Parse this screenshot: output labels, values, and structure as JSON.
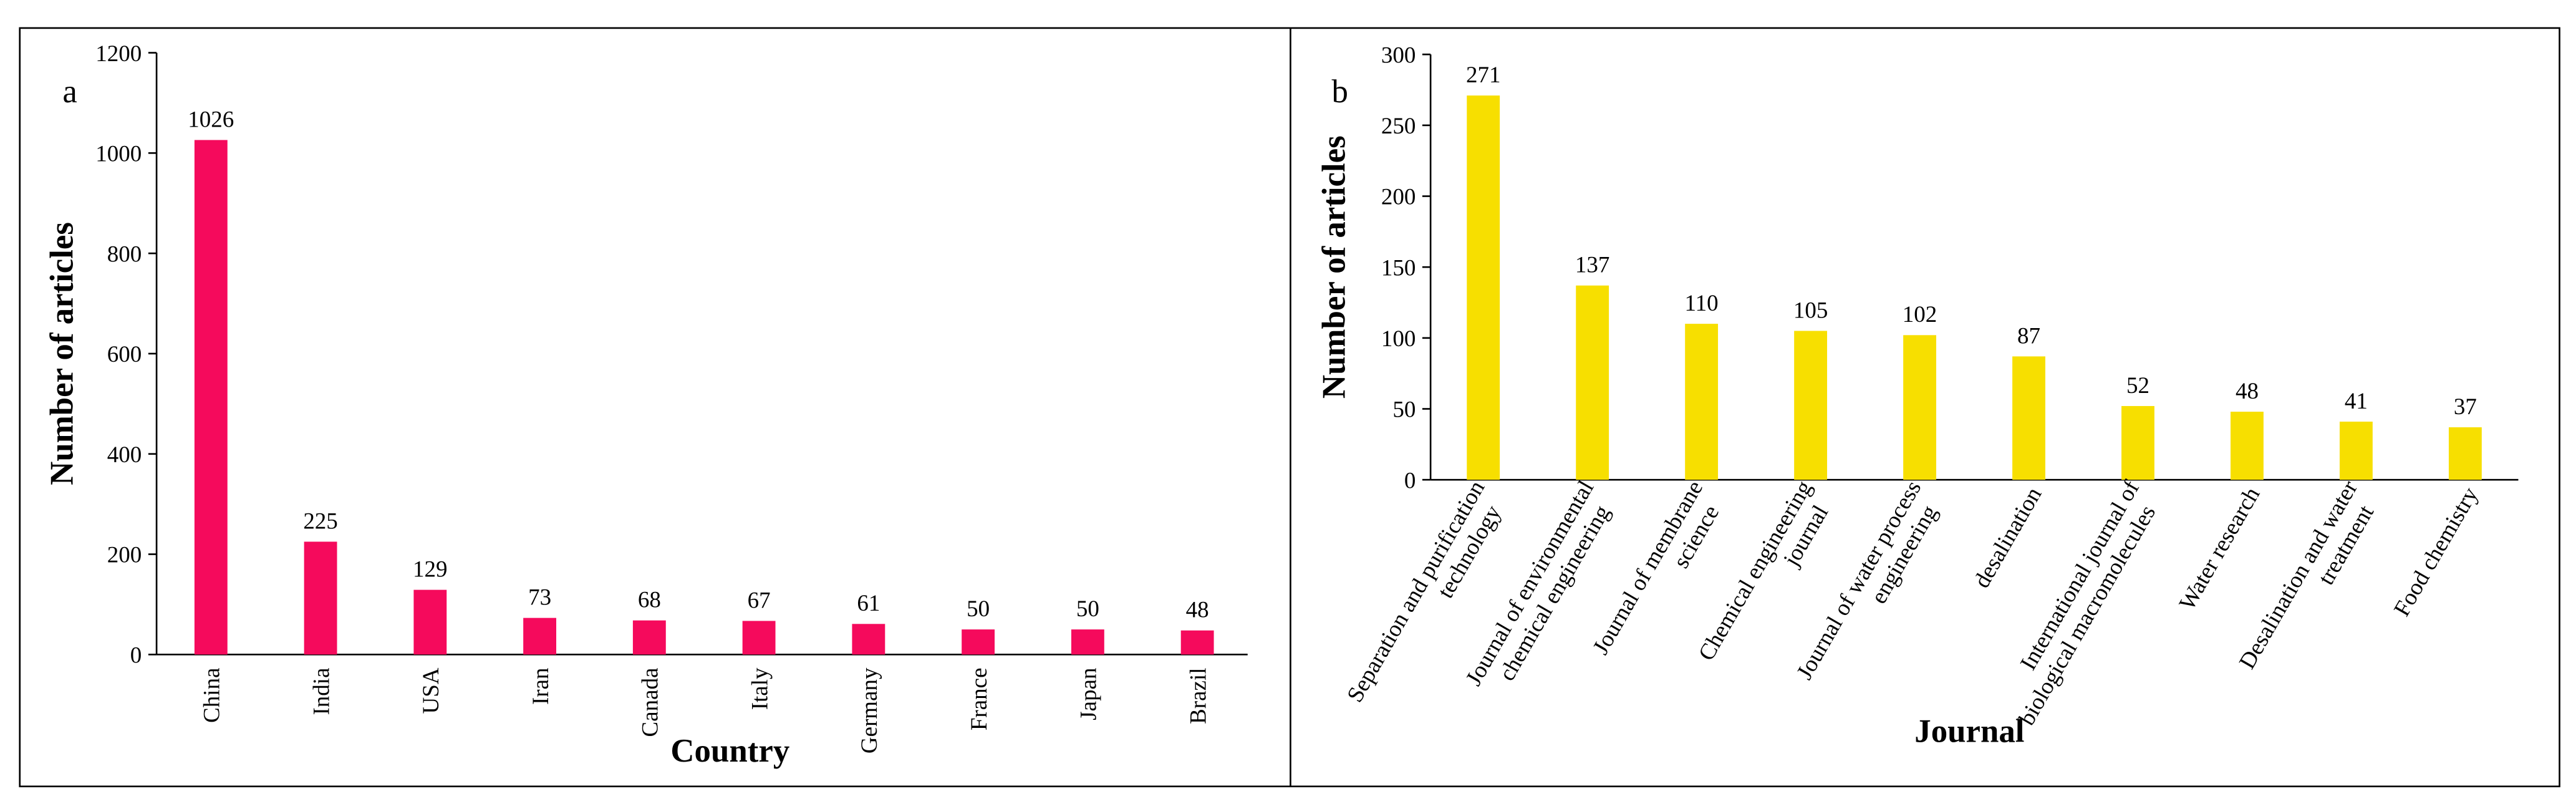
{
  "chart_data": [
    {
      "type": "bar",
      "label": "a",
      "xlabel": "Country",
      "ylabel": "Number of articles",
      "categories": [
        "China",
        "India",
        "USA",
        "Iran",
        "Canada",
        "Italy",
        "Germany",
        "France",
        "Japan",
        "Brazil"
      ],
      "values": [
        1026,
        225,
        129,
        73,
        68,
        67,
        61,
        50,
        50,
        48
      ],
      "color": "#f50a5c",
      "ylim": [
        0,
        1200
      ],
      "yticks": [
        0,
        200,
        400,
        600,
        800,
        1000,
        1200
      ]
    },
    {
      "type": "bar",
      "label": "b",
      "xlabel": "Journal",
      "ylabel": "Number of articles",
      "categories": [
        "Separation and purification\ntechnology",
        "Journal of environmental\nchemical engineering",
        "Journal of membrane\nscience",
        "Chemical engineering\njournal",
        "Journal of water process\nengineering",
        "desalination",
        "International journal of\nbiological macromolecules",
        "Water research",
        "Desalination and water\ntreatment",
        "Food chemistry"
      ],
      "values": [
        271,
        137,
        110,
        105,
        102,
        87,
        52,
        48,
        41,
        37
      ],
      "color": "#f7df00",
      "ylim": [
        0,
        300
      ],
      "yticks": [
        0,
        50,
        100,
        150,
        200,
        250,
        300
      ]
    }
  ]
}
